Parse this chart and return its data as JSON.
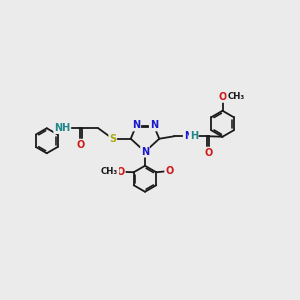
{
  "bg_color": "#ebebeb",
  "bond_color": "#1a1a1a",
  "bond_width": 1.3,
  "N_color": "#1818cc",
  "O_color": "#cc1818",
  "S_color": "#aaaa10",
  "H_color": "#208888",
  "fs": 7.0,
  "fs2": 6.2,
  "xlim": [
    0,
    12
  ],
  "ylim": [
    0,
    12
  ]
}
